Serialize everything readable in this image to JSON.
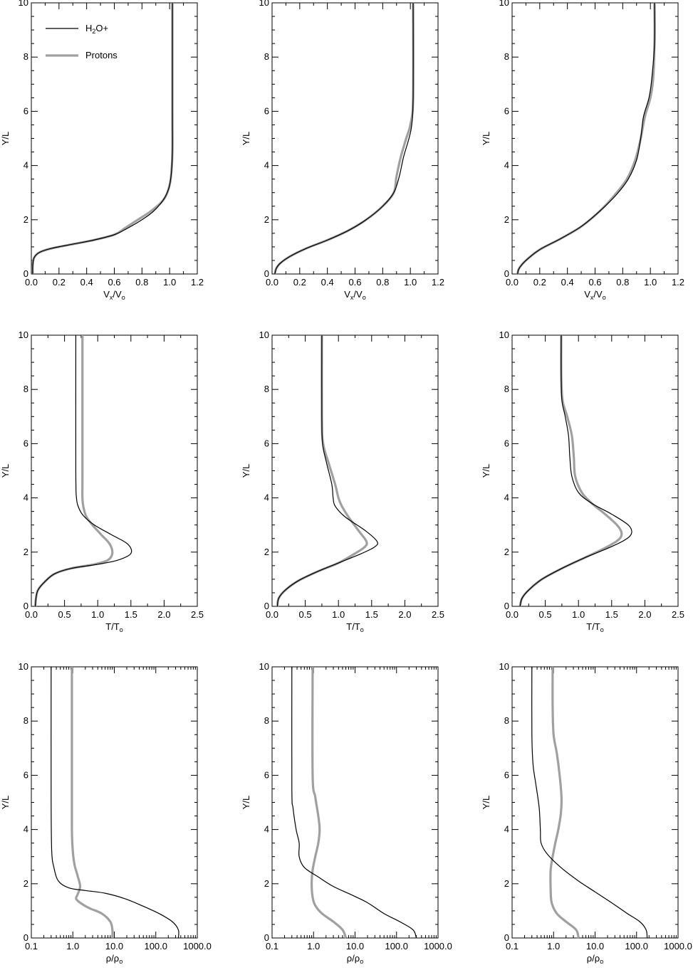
{
  "legend": [
    {
      "label": "H2O+",
      "color": "#000000"
    },
    {
      "label": "Protons",
      "color": "#a0a0a0"
    }
  ],
  "chart_data": [
    {
      "type": "line",
      "row": 0,
      "col": 0,
      "xlabel": "Vx/Vo",
      "ylabel": "Y/L",
      "xscale": "linear",
      "xlim": [
        0,
        1.2
      ],
      "ylim": [
        0,
        10
      ],
      "xticks": [
        "0.0",
        "0.2",
        "0.4",
        "0.6",
        "0.8",
        "1.0",
        "1.2"
      ],
      "yticks": [
        "0",
        "2",
        "4",
        "6",
        "8",
        "10"
      ],
      "series": [
        {
          "name": "H2O+",
          "color": "#000000",
          "x": [
            0.01,
            0.01,
            0.02,
            0.06,
            0.15,
            0.3,
            0.45,
            0.6,
            0.7,
            0.8,
            0.88,
            0.95,
            0.99,
            1.01,
            1.02,
            1.02,
            1.02
          ],
          "y": [
            0,
            0.3,
            0.6,
            0.8,
            0.95,
            1.1,
            1.25,
            1.45,
            1.7,
            2.0,
            2.3,
            2.7,
            3.1,
            3.6,
            4.5,
            6,
            10
          ]
        },
        {
          "name": "Protons",
          "color": "#a0a0a0",
          "x": [
            0.01,
            0.01,
            0.02,
            0.06,
            0.15,
            0.3,
            0.45,
            0.6,
            0.68,
            0.77,
            0.86,
            0.95,
            0.99,
            1.01,
            1.02,
            1.02,
            1.02
          ],
          "y": [
            0,
            0.3,
            0.6,
            0.8,
            0.95,
            1.1,
            1.25,
            1.45,
            1.7,
            2.0,
            2.3,
            2.7,
            3.1,
            3.6,
            4.5,
            6,
            10
          ]
        }
      ]
    },
    {
      "type": "line",
      "row": 0,
      "col": 1,
      "xlabel": "Vx/Vo",
      "ylabel": "Y/L",
      "xscale": "linear",
      "xlim": [
        0,
        1.2
      ],
      "ylim": [
        0,
        10
      ],
      "xticks": [
        "0.0",
        "0.2",
        "0.4",
        "0.6",
        "0.8",
        "1.0",
        "1.2"
      ],
      "yticks": [
        "0",
        "2",
        "4",
        "6",
        "8",
        "10"
      ],
      "series": [
        {
          "name": "H2O+",
          "color": "#000000",
          "x": [
            0.02,
            0.03,
            0.06,
            0.13,
            0.25,
            0.4,
            0.55,
            0.68,
            0.8,
            0.88,
            0.92,
            0.95,
            0.99,
            1.01,
            1.02,
            1.02
          ],
          "y": [
            0,
            0.2,
            0.4,
            0.65,
            0.95,
            1.25,
            1.6,
            2.0,
            2.5,
            3.0,
            3.6,
            4.3,
            5.0,
            5.5,
            6.5,
            10
          ]
        },
        {
          "name": "Protons",
          "color": "#a0a0a0",
          "x": [
            0.02,
            0.03,
            0.06,
            0.13,
            0.25,
            0.4,
            0.55,
            0.68,
            0.8,
            0.88,
            0.9,
            0.93,
            0.97,
            1.0,
            1.02,
            1.02
          ],
          "y": [
            0,
            0.2,
            0.4,
            0.65,
            0.95,
            1.25,
            1.6,
            2.0,
            2.5,
            3.0,
            3.6,
            4.3,
            5.0,
            5.5,
            6.5,
            10
          ]
        }
      ]
    },
    {
      "type": "line",
      "row": 0,
      "col": 2,
      "xlabel": "Vx/Vo",
      "ylabel": "Y/L",
      "xscale": "linear",
      "xlim": [
        0,
        1.2
      ],
      "ylim": [
        0,
        10
      ],
      "xticks": [
        "0.0",
        "0.2",
        "0.4",
        "0.6",
        "0.8",
        "1.0",
        "1.2"
      ],
      "yticks": [
        "0",
        "2",
        "4",
        "6",
        "8",
        "10"
      ],
      "series": [
        {
          "name": "H2O+",
          "color": "#000000",
          "x": [
            0.04,
            0.05,
            0.1,
            0.2,
            0.35,
            0.5,
            0.63,
            0.75,
            0.84,
            0.9,
            0.93,
            0.95,
            0.99,
            1.01,
            1.03,
            1.03
          ],
          "y": [
            0,
            0.2,
            0.5,
            0.9,
            1.3,
            1.75,
            2.3,
            2.9,
            3.5,
            4.2,
            5.0,
            5.8,
            6.5,
            7.2,
            8.5,
            10
          ]
        },
        {
          "name": "Protons",
          "color": "#a0a0a0",
          "x": [
            0.04,
            0.05,
            0.1,
            0.2,
            0.35,
            0.5,
            0.63,
            0.74,
            0.83,
            0.89,
            0.93,
            0.96,
            1.0,
            1.02,
            1.03,
            1.03
          ],
          "y": [
            0,
            0.2,
            0.5,
            0.9,
            1.3,
            1.75,
            2.3,
            2.9,
            3.5,
            4.2,
            5.0,
            5.8,
            6.5,
            7.2,
            8.5,
            10
          ]
        }
      ]
    },
    {
      "type": "line",
      "row": 1,
      "col": 0,
      "xlabel": "T/To",
      "ylabel": "Y/L",
      "xscale": "linear",
      "xlim": [
        0,
        2.5
      ],
      "ylim": [
        0,
        10
      ],
      "xticks": [
        "0.0",
        "0.5",
        "1.0",
        "1.5",
        "2.0",
        "2.5"
      ],
      "yticks": [
        "0",
        "2",
        "4",
        "6",
        "8",
        "10"
      ],
      "series": [
        {
          "name": "H2O+",
          "color": "#000000",
          "x": [
            0.06,
            0.07,
            0.1,
            0.2,
            0.35,
            0.6,
            1.0,
            1.3,
            1.5,
            1.45,
            1.2,
            0.95,
            0.8,
            0.72,
            0.68,
            0.67,
            0.67
          ],
          "y": [
            0,
            0.3,
            0.6,
            0.9,
            1.2,
            1.4,
            1.55,
            1.7,
            1.95,
            2.3,
            2.65,
            3.0,
            3.3,
            3.6,
            4.0,
            5.0,
            10
          ]
        },
        {
          "name": "Protons",
          "color": "#a0a0a0",
          "x": [
            0.06,
            0.07,
            0.1,
            0.2,
            0.35,
            0.6,
            0.95,
            1.15,
            1.22,
            1.18,
            1.05,
            0.92,
            0.83,
            0.79,
            0.77,
            0.77,
            0.77
          ],
          "y": [
            0,
            0.3,
            0.6,
            0.9,
            1.2,
            1.4,
            1.55,
            1.7,
            1.95,
            2.3,
            2.65,
            3.0,
            3.3,
            3.6,
            4.0,
            5.0,
            10
          ]
        }
      ]
    },
    {
      "type": "line",
      "row": 1,
      "col": 1,
      "xlabel": "T/To",
      "ylabel": "Y/L",
      "xscale": "linear",
      "xlim": [
        0,
        2.5
      ],
      "ylim": [
        0,
        10
      ],
      "xticks": [
        "0.0",
        "0.5",
        "1.0",
        "1.5",
        "2.0",
        "2.5"
      ],
      "yticks": [
        "0",
        "2",
        "4",
        "6",
        "8",
        "10"
      ],
      "series": [
        {
          "name": "H2O+",
          "color": "#000000",
          "x": [
            0.08,
            0.1,
            0.2,
            0.4,
            0.7,
            1.0,
            1.35,
            1.55,
            1.58,
            1.4,
            1.1,
            0.95,
            0.92,
            0.9,
            0.82,
            0.76,
            0.75,
            0.75
          ],
          "y": [
            0,
            0.3,
            0.6,
            0.95,
            1.3,
            1.6,
            1.95,
            2.2,
            2.4,
            2.8,
            3.3,
            3.7,
            4.0,
            4.5,
            5.3,
            6.0,
            7.0,
            10
          ]
        },
        {
          "name": "Protons",
          "color": "#a0a0a0",
          "x": [
            0.08,
            0.1,
            0.2,
            0.4,
            0.7,
            1.0,
            1.25,
            1.4,
            1.42,
            1.3,
            1.15,
            1.05,
            1.0,
            0.95,
            0.85,
            0.77,
            0.75,
            0.75
          ],
          "y": [
            0,
            0.3,
            0.6,
            0.95,
            1.3,
            1.6,
            1.95,
            2.2,
            2.4,
            2.8,
            3.3,
            3.7,
            4.0,
            4.5,
            5.3,
            6.0,
            7.0,
            10
          ]
        }
      ]
    },
    {
      "type": "line",
      "row": 1,
      "col": 2,
      "xlabel": "T/To",
      "ylabel": "Y/L",
      "xscale": "linear",
      "xlim": [
        0,
        2.5
      ],
      "ylim": [
        0,
        10
      ],
      "xticks": [
        "0.0",
        "0.5",
        "1.0",
        "1.5",
        "2.0",
        "2.5"
      ],
      "yticks": [
        "0",
        "2",
        "4",
        "6",
        "8",
        "10"
      ],
      "series": [
        {
          "name": "H2O+",
          "color": "#000000",
          "x": [
            0.12,
            0.15,
            0.25,
            0.45,
            0.75,
            1.1,
            1.45,
            1.7,
            1.8,
            1.75,
            1.5,
            1.2,
            1.0,
            0.9,
            0.87,
            0.85,
            0.8,
            0.75,
            0.74,
            0.74
          ],
          "y": [
            0,
            0.3,
            0.6,
            1.0,
            1.4,
            1.8,
            2.15,
            2.45,
            2.7,
            3.0,
            3.4,
            3.8,
            4.2,
            4.8,
            5.5,
            6.3,
            7.0,
            7.6,
            8.5,
            10
          ]
        },
        {
          "name": "Protons",
          "color": "#a0a0a0",
          "x": [
            0.12,
            0.15,
            0.25,
            0.45,
            0.75,
            1.1,
            1.4,
            1.6,
            1.65,
            1.58,
            1.4,
            1.2,
            1.05,
            0.95,
            0.93,
            0.9,
            0.83,
            0.76,
            0.74,
            0.74
          ],
          "y": [
            0,
            0.3,
            0.6,
            1.0,
            1.4,
            1.8,
            2.15,
            2.45,
            2.7,
            3.0,
            3.4,
            3.8,
            4.2,
            4.8,
            5.5,
            6.3,
            7.0,
            7.6,
            8.5,
            10
          ]
        }
      ]
    },
    {
      "type": "line",
      "row": 2,
      "col": 0,
      "xlabel": "ρ/ρo",
      "ylabel": "Y/L",
      "xscale": "log",
      "xlim": [
        0.1,
        1000
      ],
      "ylim": [
        0,
        10
      ],
      "xticks": [
        "0.1",
        "1.0",
        "10.0",
        "100.0",
        "1000.0"
      ],
      "yticks": [
        "0",
        "2",
        "4",
        "6",
        "8",
        "10"
      ],
      "series": [
        {
          "name": "H2O+",
          "color": "#000000",
          "x": [
            350,
            350,
            250,
            120,
            45,
            18,
            6,
            2,
            0.8,
            0.45,
            0.35,
            0.31,
            0.3,
            0.3
          ],
          "y": [
            0,
            0.3,
            0.6,
            0.9,
            1.2,
            1.45,
            1.65,
            1.75,
            1.85,
            2.1,
            2.6,
            3.2,
            5,
            10
          ]
        },
        {
          "name": "Protons",
          "color": "#a0a0a0",
          "x": [
            9,
            9,
            8,
            5,
            2.5,
            1.5,
            1.2,
            1.3,
            1.5,
            1.3,
            1.1,
            1.0,
            0.95,
            0.95,
            0.95
          ],
          "y": [
            0,
            0.3,
            0.6,
            0.9,
            1.1,
            1.3,
            1.45,
            1.6,
            1.9,
            2.3,
            2.7,
            3.2,
            4,
            6,
            10
          ]
        }
      ]
    },
    {
      "type": "line",
      "row": 2,
      "col": 1,
      "xlabel": "ρ/ρo",
      "ylabel": "Y/L",
      "xscale": "log",
      "xlim": [
        0.1,
        1000
      ],
      "ylim": [
        0,
        10
      ],
      "xticks": [
        "0.1",
        "1.0",
        "10.0",
        "100.0",
        "1000.0"
      ],
      "yticks": [
        "0",
        "2",
        "4",
        "6",
        "8",
        "10"
      ],
      "series": [
        {
          "name": "H2O+",
          "color": "#000000",
          "x": [
            300,
            250,
            120,
            50,
            20,
            8,
            3,
            1.3,
            0.6,
            0.45,
            0.45,
            0.38,
            0.32,
            0.3,
            0.3
          ],
          "y": [
            0,
            0.3,
            0.6,
            0.9,
            1.3,
            1.6,
            1.9,
            2.25,
            2.6,
            3.0,
            3.5,
            4.0,
            4.8,
            5.5,
            10
          ]
        },
        {
          "name": "Protons",
          "color": "#a0a0a0",
          "x": [
            6,
            5,
            3,
            1.6,
            1.1,
            0.95,
            0.9,
            0.95,
            1.1,
            1.3,
            1.4,
            1.3,
            1.1,
            0.95,
            0.95
          ],
          "y": [
            0,
            0.3,
            0.6,
            0.9,
            1.2,
            1.5,
            2.0,
            2.5,
            3.0,
            3.5,
            4.0,
            4.5,
            5.2,
            6.0,
            10
          ]
        }
      ]
    },
    {
      "type": "line",
      "row": 2,
      "col": 2,
      "xlabel": "ρ/ρo",
      "ylabel": "Y/L",
      "xscale": "log",
      "xlim": [
        0.1,
        1000
      ],
      "ylim": [
        0,
        10
      ],
      "xticks": [
        "0.1",
        "1.0",
        "10.0",
        "100.0",
        "1000.0"
      ],
      "yticks": [
        "0",
        "2",
        "4",
        "6",
        "8",
        "10"
      ],
      "series": [
        {
          "name": "H2O+",
          "color": "#000000",
          "x": [
            180,
            170,
            120,
            60,
            25,
            10,
            4,
            1.5,
            0.7,
            0.5,
            0.48,
            0.45,
            0.38,
            0.32,
            0.3,
            0.3
          ],
          "y": [
            0,
            0.3,
            0.6,
            0.9,
            1.3,
            1.7,
            2.1,
            2.6,
            3.1,
            3.5,
            4.0,
            4.8,
            5.6,
            6.4,
            7.5,
            10
          ]
        },
        {
          "name": "Protons",
          "color": "#a0a0a0",
          "x": [
            4,
            3.5,
            2,
            1.2,
            0.9,
            0.85,
            0.85,
            0.95,
            1.1,
            1.3,
            1.5,
            1.55,
            1.4,
            1.2,
            1.0,
            0.95,
            0.95
          ],
          "y": [
            0,
            0.3,
            0.6,
            0.9,
            1.3,
            1.8,
            2.5,
            3.0,
            3.5,
            4.0,
            4.6,
            5.2,
            6.0,
            6.8,
            7.5,
            8.5,
            10
          ]
        }
      ]
    }
  ]
}
